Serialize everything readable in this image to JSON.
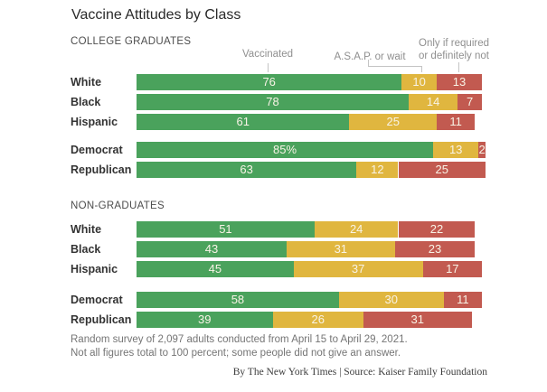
{
  "title": "Vaccine Attitudes by Class",
  "annotations": {
    "vaccinated": "Vaccinated",
    "asap": "A.S.A.P. or wait",
    "only_line1": "Only if required",
    "only_line2": "or definitely not"
  },
  "colors": {
    "vaccinated_green": "#4aa25c",
    "asap_yellow": "#e0b63f",
    "only_red": "#c25a50",
    "bar_value_text": "#f8f3e6",
    "background": "#ffffff"
  },
  "footer": {
    "note_line1": "Random survey of 2,097 adults conducted from April 15 to April 29, 2021.",
    "note_line2": "Not all figures total to 100 percent; some people did not give an answer.",
    "credit": "By The New York Times | Source: Kaiser Family Foundation"
  },
  "chart_data": {
    "type": "bar",
    "stacked": true,
    "orientation": "horizontal",
    "unit": "percent",
    "xlim": [
      0,
      100
    ],
    "grid": false,
    "legend_position": "top",
    "series_names": [
      "Vaccinated",
      "A.S.A.P. or wait",
      "Only if required or definitely not"
    ],
    "series_colors": [
      "#4aa25c",
      "#e0b63f",
      "#c25a50"
    ],
    "sections": [
      {
        "label": "COLLEGE GRADUATES",
        "row_groups": [
          [
            {
              "category": "White",
              "values": [
                76,
                10,
                13
              ],
              "display": [
                "76",
                "10",
                "13"
              ]
            },
            {
              "category": "Black",
              "values": [
                78,
                14,
                7
              ],
              "display": [
                "78",
                "14",
                "7"
              ]
            },
            {
              "category": "Hispanic",
              "values": [
                61,
                25,
                11
              ],
              "display": [
                "61",
                "25",
                "11"
              ]
            }
          ],
          [
            {
              "category": "Democrat",
              "values": [
                85,
                13,
                2
              ],
              "display": [
                "85%",
                "13",
                "2"
              ]
            },
            {
              "category": "Republican",
              "values": [
                63,
                12,
                25
              ],
              "display": [
                "63",
                "12",
                "25"
              ]
            }
          ]
        ]
      },
      {
        "label": "NON-GRADUATES",
        "row_groups": [
          [
            {
              "category": "White",
              "values": [
                51,
                24,
                22
              ],
              "display": [
                "51",
                "24",
                "22"
              ]
            },
            {
              "category": "Black",
              "values": [
                43,
                31,
                23
              ],
              "display": [
                "43",
                "31",
                "23"
              ]
            },
            {
              "category": "Hispanic",
              "values": [
                45,
                37,
                17
              ],
              "display": [
                "45",
                "37",
                "17"
              ]
            }
          ],
          [
            {
              "category": "Democrat",
              "values": [
                58,
                30,
                11
              ],
              "display": [
                "58",
                "30",
                "11"
              ]
            },
            {
              "category": "Republican",
              "values": [
                39,
                26,
                31
              ],
              "display": [
                "39",
                "26",
                "31"
              ]
            }
          ]
        ]
      }
    ]
  }
}
